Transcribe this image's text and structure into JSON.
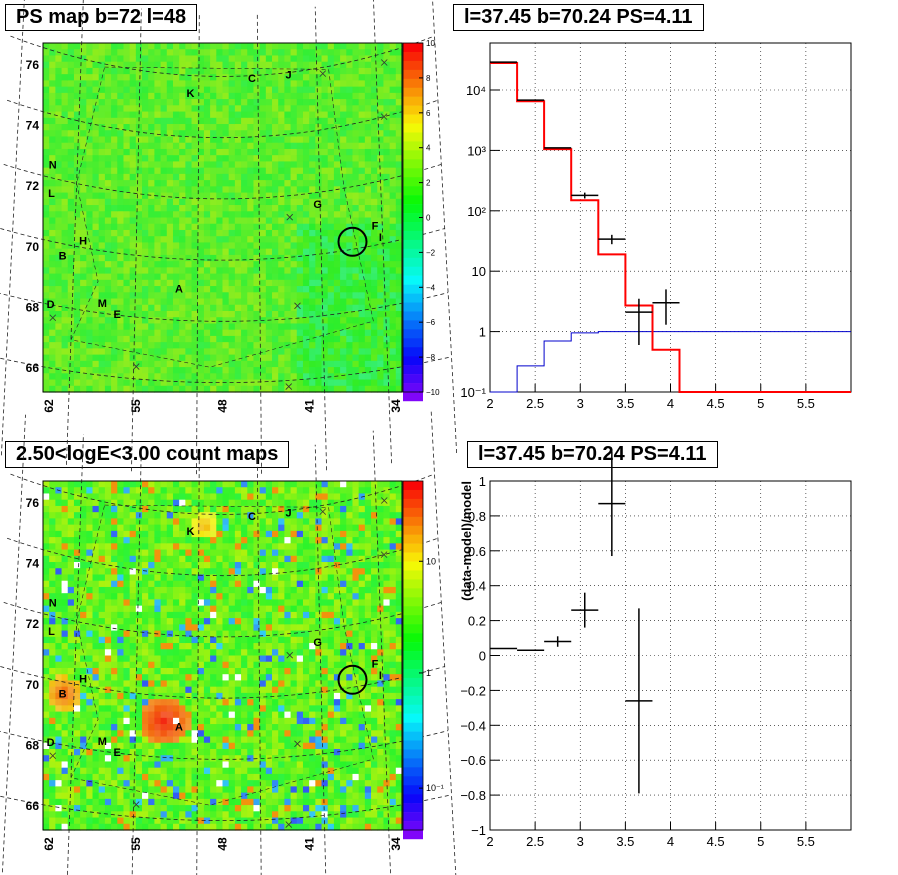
{
  "titles": {
    "tl": "PS map b=72 l=48",
    "tr": "l=37.45 b=70.24 PS=4.11",
    "bl": "2.50<logE<3.00 count maps",
    "br": "l=37.45 b=70.24 PS=4.11"
  },
  "colors": {
    "data": "#000000",
    "model": "#ff0000",
    "background_model": "#0000cc",
    "circle": "#000000"
  },
  "map_axes": {
    "x_ticks": [
      "62",
      "55",
      "48",
      "41",
      "34"
    ],
    "y_ticks": [
      "76",
      "74",
      "72",
      "70",
      "68",
      "66"
    ]
  },
  "map_labels": [
    {
      "text": "C",
      "l": 45.5,
      "b": 75.8
    },
    {
      "text": "J",
      "l": 42.4,
      "b": 75.8
    },
    {
      "text": "K",
      "l": 50.7,
      "b": 75.3
    },
    {
      "text": "N",
      "l": 62.0,
      "b": 72.3
    },
    {
      "text": "L",
      "l": 62.0,
      "b": 71.4
    },
    {
      "text": "G",
      "l": 40.2,
      "b": 71.5
    },
    {
      "text": "F",
      "l": 35.6,
      "b": 70.5
    },
    {
      "text": "I",
      "l": 35.2,
      "b": 70.1
    },
    {
      "text": "H",
      "l": 59.3,
      "b": 70.1
    },
    {
      "text": "B",
      "l": 60.9,
      "b": 69.5
    },
    {
      "text": "A",
      "l": 51.5,
      "b": 68.9
    },
    {
      "text": "D",
      "l": 61.7,
      "b": 67.9
    },
    {
      "text": "M",
      "l": 57.6,
      "b": 68.2
    },
    {
      "text": "E",
      "l": 56.4,
      "b": 67.9
    }
  ],
  "ps_map": {
    "colorbar_ticks": [
      "10",
      "8",
      "6",
      "4",
      "2",
      "0",
      "−2",
      "−4",
      "−6",
      "−8",
      "−10"
    ],
    "colorbar_range": [
      -10,
      10
    ]
  },
  "count_map": {
    "colorbar_ticks": [
      "10",
      "1",
      "10⁻¹"
    ]
  },
  "chart_data": [
    {
      "type": "line",
      "title": "l=37.45 b=70.24 PS=4.11",
      "xlim": [
        2.0,
        6.0
      ],
      "ylim": [
        0.1,
        60000
      ],
      "yscale": "log",
      "x_ticks": [
        "2",
        "2.5",
        "3",
        "3.5",
        "4",
        "4.5",
        "5",
        "5.5"
      ],
      "y_ticks": [
        "10⁻¹",
        "1",
        "10",
        "10²",
        "10³",
        "10⁴"
      ],
      "grid": true,
      "bin_edges": [
        2.0,
        2.3,
        2.6,
        2.9,
        3.2,
        3.5,
        3.8,
        4.1,
        4.4,
        4.7,
        5.0,
        5.3,
        5.6,
        6.0
      ],
      "model": [
        28000,
        6500,
        1050,
        150,
        19,
        2.7,
        0.5,
        0.1,
        0.1,
        0.1,
        0.1,
        0.1,
        0.1
      ],
      "background": [
        0.1,
        0.27,
        0.7,
        0.95,
        1,
        1,
        1,
        1,
        1,
        1,
        1,
        1,
        1
      ],
      "data_points": [
        {
          "x": 2.15,
          "y": 29000,
          "xerr": 0.15,
          "yerr_lo": 0,
          "yerr_hi": 0
        },
        {
          "x": 2.45,
          "y": 6800,
          "xerr": 0.15,
          "yerr_lo": 0,
          "yerr_hi": 0
        },
        {
          "x": 2.75,
          "y": 1100,
          "xerr": 0.15,
          "yerr_lo": 0,
          "yerr_hi": 0
        },
        {
          "x": 3.05,
          "y": 180,
          "xerr": 0.15,
          "yerr_lo": 20,
          "yerr_hi": 20
        },
        {
          "x": 3.35,
          "y": 34,
          "xerr": 0.15,
          "yerr_lo": 6,
          "yerr_hi": 6
        },
        {
          "x": 3.65,
          "y": 2.1,
          "xerr": 0.15,
          "yerr_lo": 1.5,
          "yerr_hi": 1.4
        },
        {
          "x": 3.95,
          "y": 3.0,
          "xerr": 0.15,
          "yerr_lo": 1.7,
          "yerr_hi": 2.0
        }
      ]
    },
    {
      "type": "scatter",
      "title": "l=37.45 b=70.24 PS=4.11",
      "ylabel": "(data-model)/model",
      "xlim": [
        2.0,
        6.0
      ],
      "ylim": [
        -1.0,
        1.0
      ],
      "x_ticks": [
        "2",
        "2.5",
        "3",
        "3.5",
        "4",
        "4.5",
        "5",
        "5.5"
      ],
      "y_ticks": [
        "1",
        "0.8",
        "0.6",
        "0.4",
        "0.2",
        "0",
        "−0.2",
        "−0.4",
        "−0.6",
        "−0.8",
        "−1"
      ],
      "grid": true,
      "points": [
        {
          "x": 2.15,
          "y": 0.04,
          "xerr": 0.15,
          "yerr": 0.0
        },
        {
          "x": 2.45,
          "y": 0.03,
          "xerr": 0.15,
          "yerr": 0.0
        },
        {
          "x": 2.75,
          "y": 0.08,
          "xerr": 0.15,
          "yerr": 0.03
        },
        {
          "x": 3.05,
          "y": 0.26,
          "xerr": 0.15,
          "yerr": 0.1
        },
        {
          "x": 3.35,
          "y": 0.87,
          "xerr": 0.15,
          "yerr": 0.3
        },
        {
          "x": 3.65,
          "y": -0.26,
          "xerr": 0.15,
          "yerr": 0.53
        }
      ]
    }
  ]
}
